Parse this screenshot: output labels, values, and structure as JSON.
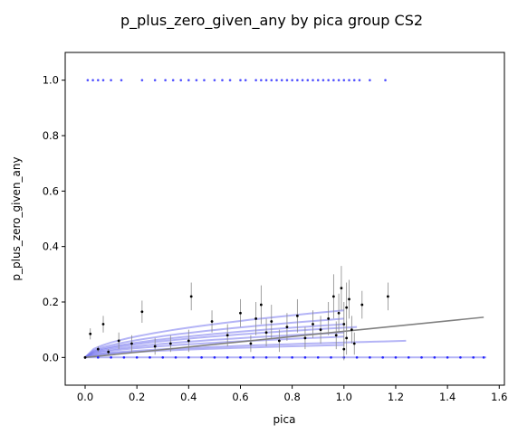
{
  "chart_data": {
    "type": "scatter",
    "title": "p_plus_zero_given_any by pica group CS2",
    "xlabel": "pica",
    "ylabel": "p_plus_zero_given_any",
    "xlim": [
      -0.077,
      1.62
    ],
    "ylim": [
      -0.1,
      1.1
    ],
    "xticks": [
      "0.0",
      "0.2",
      "0.4",
      "0.6",
      "0.8",
      "1.0",
      "1.2",
      "1.4",
      "1.6"
    ],
    "yticks": [
      "0.0",
      "0.2",
      "0.4",
      "0.6",
      "0.8",
      "1.0"
    ],
    "grid": false,
    "colors": {
      "points": "#0000ff",
      "means": "#000000",
      "fits": "#7777ee",
      "overall_fit": "#808080",
      "errorbars": "#888888"
    },
    "blue_points_at_one": [
      0.01,
      0.03,
      0.05,
      0.07,
      0.1,
      0.14,
      0.22,
      0.27,
      0.31,
      0.34,
      0.37,
      0.4,
      0.43,
      0.46,
      0.5,
      0.53,
      0.56,
      0.6,
      0.62,
      0.66,
      0.68,
      0.7,
      0.72,
      0.74,
      0.76,
      0.78,
      0.8,
      0.82,
      0.84,
      0.86,
      0.88,
      0.9,
      0.92,
      0.94,
      0.96,
      0.98,
      1.0,
      1.02,
      1.04,
      1.06,
      1.1,
      1.16
    ],
    "blue_points_at_zero": [
      0.0,
      0.05,
      0.1,
      0.15,
      0.2,
      0.25,
      0.3,
      0.35,
      0.4,
      0.45,
      0.5,
      0.55,
      0.6,
      0.65,
      0.7,
      0.75,
      0.8,
      0.85,
      0.9,
      0.95,
      1.0,
      1.05,
      1.1,
      1.15,
      1.2,
      1.25,
      1.3,
      1.35,
      1.4,
      1.45,
      1.5,
      1.54
    ],
    "group_means": [
      {
        "x": 0.0,
        "y": 0.0,
        "err": 0.0
      },
      {
        "x": 0.02,
        "y": 0.085,
        "err": 0.02
      },
      {
        "x": 0.05,
        "y": 0.03,
        "err": 0.01
      },
      {
        "x": 0.07,
        "y": 0.12,
        "err": 0.03
      },
      {
        "x": 0.09,
        "y": 0.02,
        "err": 0.01
      },
      {
        "x": 0.13,
        "y": 0.06,
        "err": 0.03
      },
      {
        "x": 0.18,
        "y": 0.05,
        "err": 0.03
      },
      {
        "x": 0.22,
        "y": 0.165,
        "err": 0.04
      },
      {
        "x": 0.27,
        "y": 0.04,
        "err": 0.03
      },
      {
        "x": 0.33,
        "y": 0.05,
        "err": 0.03
      },
      {
        "x": 0.4,
        "y": 0.06,
        "err": 0.04
      },
      {
        "x": 0.41,
        "y": 0.22,
        "err": 0.05
      },
      {
        "x": 0.49,
        "y": 0.13,
        "err": 0.04
      },
      {
        "x": 0.55,
        "y": 0.08,
        "err": 0.04
      },
      {
        "x": 0.6,
        "y": 0.16,
        "err": 0.05
      },
      {
        "x": 0.64,
        "y": 0.05,
        "err": 0.03
      },
      {
        "x": 0.66,
        "y": 0.14,
        "err": 0.06
      },
      {
        "x": 0.68,
        "y": 0.19,
        "err": 0.07
      },
      {
        "x": 0.7,
        "y": 0.09,
        "err": 0.05
      },
      {
        "x": 0.72,
        "y": 0.13,
        "err": 0.06
      },
      {
        "x": 0.75,
        "y": 0.06,
        "err": 0.04
      },
      {
        "x": 0.78,
        "y": 0.11,
        "err": 0.05
      },
      {
        "x": 0.82,
        "y": 0.15,
        "err": 0.06
      },
      {
        "x": 0.85,
        "y": 0.07,
        "err": 0.04
      },
      {
        "x": 0.88,
        "y": 0.12,
        "err": 0.05
      },
      {
        "x": 0.91,
        "y": 0.1,
        "err": 0.05
      },
      {
        "x": 0.94,
        "y": 0.14,
        "err": 0.06
      },
      {
        "x": 0.96,
        "y": 0.22,
        "err": 0.08
      },
      {
        "x": 0.97,
        "y": 0.08,
        "err": 0.05
      },
      {
        "x": 0.98,
        "y": 0.16,
        "err": 0.07
      },
      {
        "x": 0.99,
        "y": 0.25,
        "err": 0.08
      },
      {
        "x": 1.0,
        "y": 0.03,
        "err": 0.04
      },
      {
        "x": 1.0,
        "y": 0.12,
        "err": 0.08
      },
      {
        "x": 1.01,
        "y": 0.18,
        "err": 0.09
      },
      {
        "x": 1.01,
        "y": 0.07,
        "err": 0.06
      },
      {
        "x": 1.02,
        "y": 0.21,
        "err": 0.07
      },
      {
        "x": 1.03,
        "y": 0.1,
        "err": 0.05
      },
      {
        "x": 1.04,
        "y": 0.05,
        "err": 0.04
      },
      {
        "x": 1.07,
        "y": 0.19,
        "err": 0.05
      },
      {
        "x": 1.17,
        "y": 0.22,
        "err": 0.05
      }
    ],
    "fit_curves": [
      {
        "xmax": 1.0,
        "y_at_max": 0.17
      },
      {
        "xmax": 1.0,
        "y_at_max": 0.14
      },
      {
        "xmax": 1.0,
        "y_at_max": 0.12
      },
      {
        "xmax": 1.05,
        "y_at_max": 0.11
      },
      {
        "xmax": 1.0,
        "y_at_max": 0.09
      },
      {
        "xmax": 1.0,
        "y_at_max": 0.075
      },
      {
        "xmax": 1.24,
        "y_at_max": 0.06
      },
      {
        "xmax": 1.0,
        "y_at_max": 0.045
      },
      {
        "xmax": 1.55,
        "y_at_max": 0.0
      }
    ],
    "overall_fit": {
      "x": [
        0.0,
        1.54
      ],
      "y": [
        0.0,
        0.145
      ]
    }
  }
}
